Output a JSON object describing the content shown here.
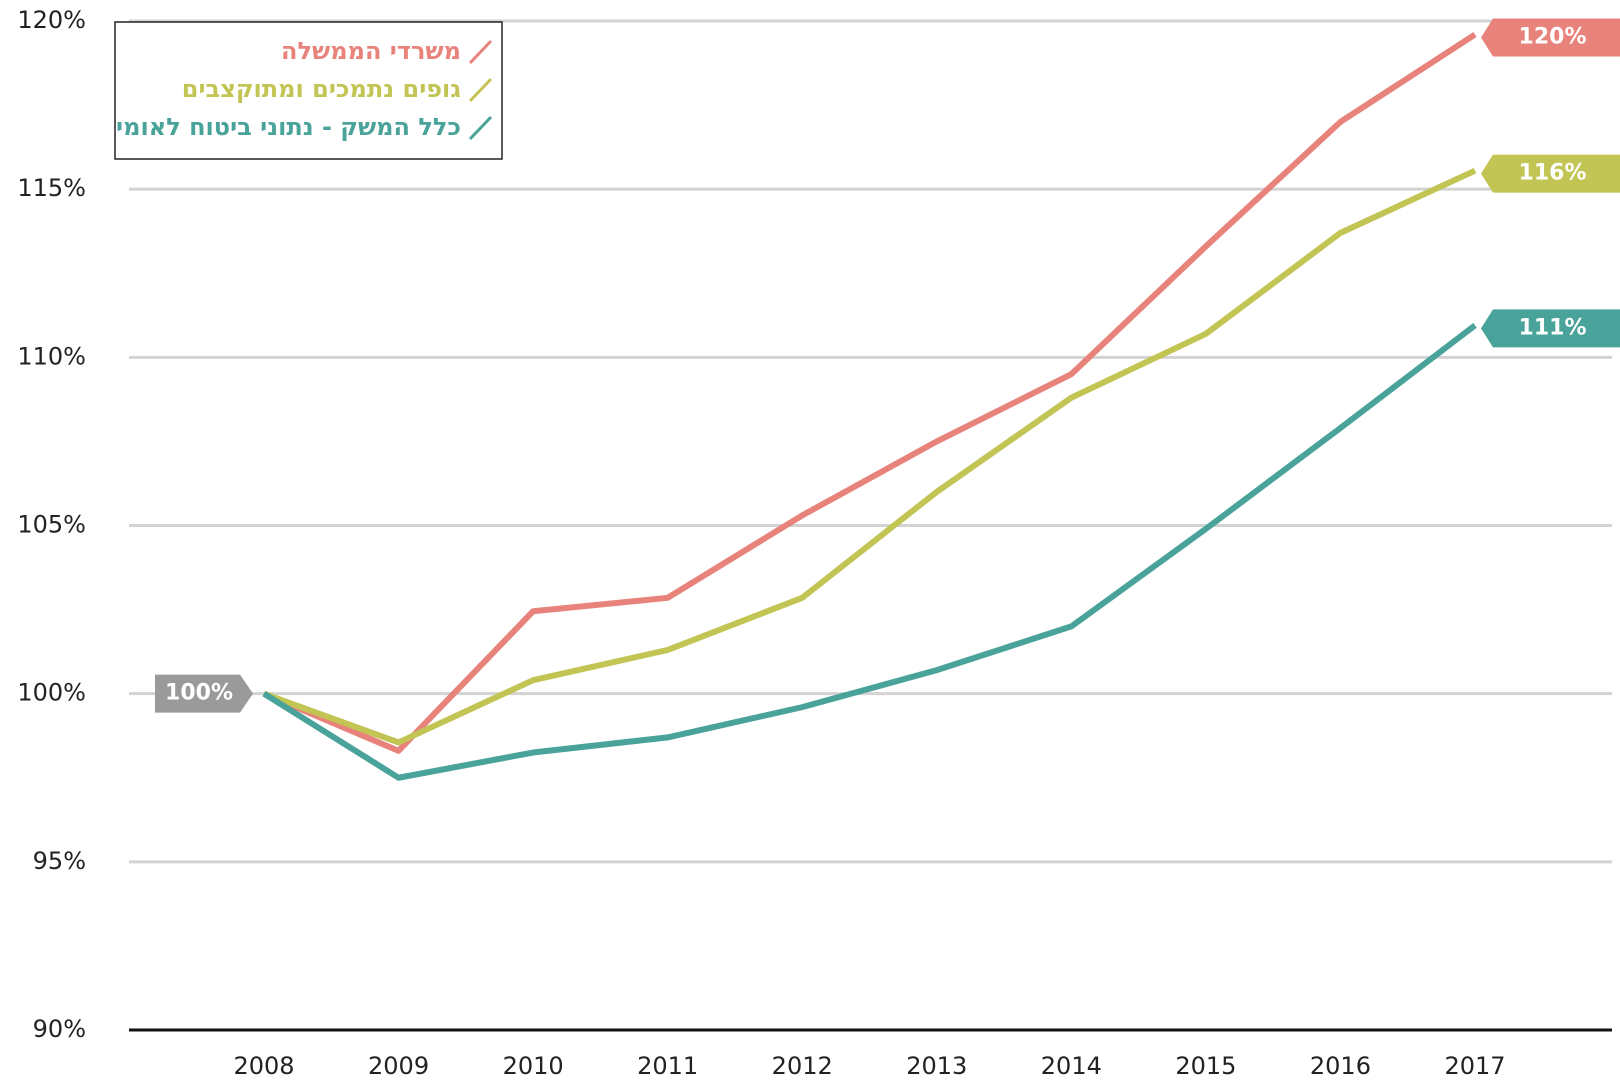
{
  "chart_data": {
    "type": "line",
    "categories": [
      "2008",
      "2009",
      "2010",
      "2011",
      "2012",
      "2013",
      "2014",
      "2015",
      "2016",
      "2017"
    ],
    "series": [
      {
        "name": "משרדי הממשלה",
        "color": "#e8837c",
        "values": [
          100,
          98.3,
          102.45,
          102.85,
          105.3,
          107.5,
          109.5,
          113.3,
          117.0,
          119.6
        ],
        "end_label": "120%"
      },
      {
        "name": "גופים נתמכים ומתוקצבים",
        "color": "#c2c454",
        "values": [
          100,
          98.55,
          100.4,
          101.3,
          102.85,
          106.0,
          108.8,
          110.7,
          113.7,
          115.55
        ],
        "end_label": "116%"
      },
      {
        "name": "כלל המשק - נתוני ביטוח לאומי",
        "color": "#4aa39a",
        "values": [
          100,
          97.5,
          98.25,
          98.7,
          99.6,
          100.7,
          102.0,
          104.9,
          107.9,
          110.95
        ],
        "end_label": "111%"
      }
    ],
    "start_label": "100%",
    "start_label_color": "#9a9a9a",
    "ylim": [
      90,
      120
    ],
    "yticks": [
      {
        "value": 90,
        "label": "90%"
      },
      {
        "value": 95,
        "label": "95%"
      },
      {
        "value": 100,
        "label": "100%"
      },
      {
        "value": 105,
        "label": "105%"
      },
      {
        "value": 110,
        "label": "110%"
      },
      {
        "value": 115,
        "label": "115%"
      },
      {
        "value": 120,
        "label": "120%"
      }
    ],
    "grid": true,
    "legend": "upper left"
  }
}
